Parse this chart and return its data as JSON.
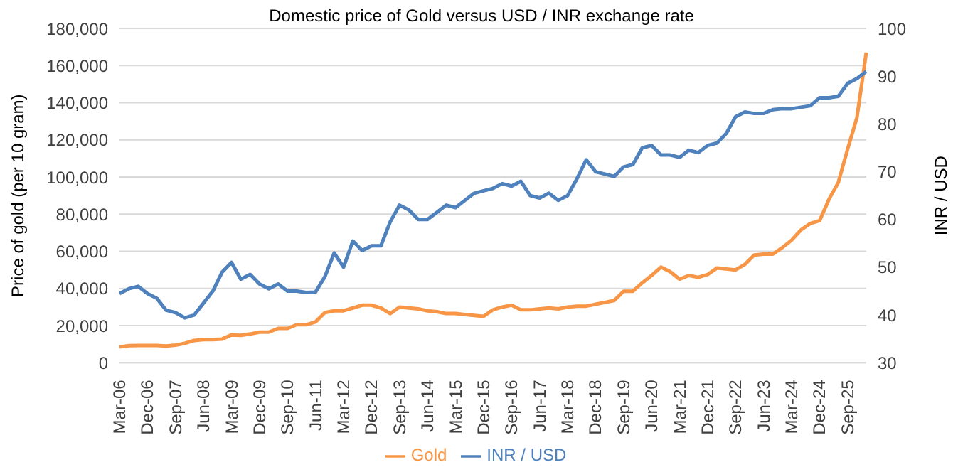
{
  "chart_data": {
    "type": "line",
    "title": "Domestic price of Gold versus USD / INR exchange rate",
    "ylabel": "Price of gold (per 10 gram)",
    "y2label": "INR / USD",
    "categories": [
      "Mar-06",
      null,
      null,
      "Dec-06",
      null,
      null,
      "Sep-07",
      null,
      null,
      "Jun-08",
      null,
      null,
      "Mar-09",
      null,
      null,
      "Dec-09",
      null,
      null,
      "Sep-10",
      null,
      null,
      "Jun-11",
      null,
      null,
      "Mar-12",
      null,
      null,
      "Dec-12",
      null,
      null,
      "Sep-13",
      null,
      null,
      "Jun-14",
      null,
      null,
      "Mar-15",
      null,
      null,
      "Dec-15",
      null,
      null,
      "Sep-16",
      null,
      null,
      "Jun-17",
      null,
      null,
      "Mar-18",
      null,
      null,
      "Dec-18",
      null,
      null,
      "Sep-19",
      null,
      null,
      "Jun-20",
      null,
      null,
      "Mar-21",
      null,
      null,
      "Dec-21",
      null,
      null,
      "Sep-22",
      null,
      null,
      "Jun-23",
      null,
      null,
      "Mar-24",
      null,
      null,
      "Dec-24",
      null,
      null,
      "Sep-25",
      null,
      null
    ],
    "series": [
      {
        "name": "Gold",
        "color": "#f79646",
        "values": [
          8500,
          9200,
          9300,
          9300,
          9300,
          9000,
          9500,
          10500,
          12000,
          12500,
          12500,
          12800,
          15000,
          14800,
          15500,
          16500,
          16500,
          18500,
          18500,
          20500,
          20500,
          22000,
          27000,
          28000,
          28000,
          29500,
          31000,
          31000,
          29500,
          26500,
          30000,
          29500,
          29000,
          28000,
          27500,
          26500,
          26500,
          26000,
          25500,
          25000,
          28500,
          30000,
          31000,
          28500,
          28500,
          29000,
          29500,
          29000,
          30000,
          30500,
          30500,
          31500,
          32500,
          33500,
          38500,
          38500,
          43000,
          47000,
          51500,
          49000,
          45000,
          47000,
          46000,
          47500,
          51000,
          50500,
          50000,
          53000,
          58000,
          58500,
          58500,
          62000,
          66000,
          71500,
          75000,
          76500,
          88000,
          97000,
          115000,
          132000,
          167000
        ]
      },
      {
        "name": "INR / USD",
        "color": "#4f81bd",
        "axis": "y2",
        "values": [
          44.5,
          45.5,
          46,
          44.5,
          43.5,
          41,
          40.5,
          39.4,
          40,
          42.5,
          45,
          49,
          51,
          47.5,
          48.5,
          46.5,
          45.5,
          46.5,
          45,
          45,
          44.7,
          44.8,
          48,
          53,
          50,
          55.5,
          53.5,
          54.5,
          54.5,
          59.5,
          63,
          62,
          60,
          60,
          61.5,
          63,
          62.5,
          64,
          65.5,
          66,
          66.5,
          67.5,
          67,
          68,
          65,
          64.5,
          65.5,
          64,
          65,
          68.5,
          72.5,
          70,
          69.5,
          69,
          71,
          71.5,
          75,
          75.5,
          73.5,
          73.5,
          73,
          74.5,
          74,
          75.5,
          76,
          78,
          81.5,
          82.5,
          82.2,
          82.2,
          83,
          83.2,
          83.2,
          83.5,
          83.8,
          85.5,
          85.5,
          85.8,
          88.5,
          89.5,
          91
        ]
      }
    ],
    "ylim": [
      0,
      180000
    ],
    "yticks": [
      0,
      {
        "value": 20000,
        "label": "20,000"
      },
      {
        "value": 40000,
        "label": "40,000"
      },
      {
        "value": 60000,
        "label": "60,000"
      },
      {
        "value": 80000,
        "label": "80,000"
      },
      {
        "value": 100000,
        "label": "100,000"
      },
      {
        "value": 120000,
        "label": "120,000"
      },
      {
        "value": 140000,
        "label": "140,000"
      },
      {
        "value": 160000,
        "label": "160,000"
      },
      {
        "value": 180000,
        "label": "180,000"
      }
    ],
    "y2lim": [
      30,
      100
    ],
    "y2ticks": [
      30,
      40,
      50,
      60,
      70,
      80,
      90,
      100
    ],
    "grid": "y",
    "legend": "bottom",
    "marker": "none",
    "line_style": "solid"
  }
}
